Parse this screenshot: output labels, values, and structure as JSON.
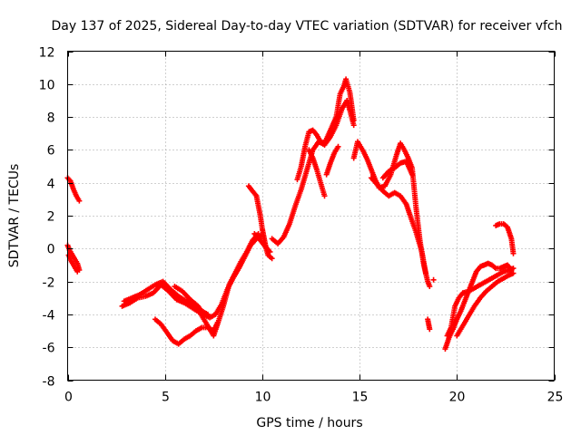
{
  "chart_data": {
    "type": "scatter",
    "title": "Day 137 of 2025, Sidereal Day-to-day VTEC variation (SDTVAR) for receiver vfch",
    "xlabel": "GPS time / hours",
    "ylabel": "SDTVAR / TECUs",
    "xlim": [
      0,
      25
    ],
    "ylim": [
      -8,
      12
    ],
    "xticks": [
      0,
      5,
      10,
      15,
      20,
      25
    ],
    "yticks": [
      -8,
      -6,
      -4,
      -2,
      0,
      2,
      4,
      6,
      8,
      10,
      12
    ],
    "grid": true,
    "marker": "+",
    "color": "#ff0000",
    "series": [
      {
        "name": "seg-a",
        "points": [
          [
            0.0,
            4.3
          ],
          [
            0.15,
            4.1
          ],
          [
            0.3,
            3.6
          ],
          [
            0.45,
            3.2
          ],
          [
            0.6,
            2.9
          ]
        ]
      },
      {
        "name": "seg-b",
        "points": [
          [
            0.0,
            0.2
          ],
          [
            0.1,
            -0.1
          ],
          [
            0.2,
            -0.3
          ],
          [
            0.35,
            -0.6
          ],
          [
            0.5,
            -0.9
          ],
          [
            0.6,
            -1.3
          ]
        ]
      },
      {
        "name": "seg-c",
        "points": [
          [
            0.05,
            -0.4
          ],
          [
            0.2,
            -0.8
          ],
          [
            0.35,
            -1.1
          ],
          [
            0.5,
            -1.4
          ]
        ]
      },
      {
        "name": "seg-d",
        "points": [
          [
            2.8,
            -3.5
          ],
          [
            3.2,
            -3.3
          ],
          [
            3.6,
            -3.0
          ],
          [
            4.0,
            -2.9
          ],
          [
            4.4,
            -2.7
          ],
          [
            4.8,
            -2.2
          ],
          [
            5.2,
            -2.6
          ],
          [
            5.6,
            -3.1
          ],
          [
            6.0,
            -3.3
          ],
          [
            6.4,
            -3.6
          ],
          [
            6.8,
            -3.9
          ],
          [
            7.2,
            -4.7
          ],
          [
            7.5,
            -5.3
          ],
          [
            7.7,
            -4.6
          ],
          [
            8.0,
            -3.5
          ],
          [
            8.3,
            -2.2
          ],
          [
            8.6,
            -1.5
          ],
          [
            8.9,
            -0.8
          ],
          [
            9.2,
            -0.2
          ],
          [
            9.5,
            0.5
          ],
          [
            9.8,
            0.9
          ]
        ]
      },
      {
        "name": "seg-e",
        "points": [
          [
            2.9,
            -3.2
          ],
          [
            3.3,
            -3.0
          ],
          [
            3.7,
            -2.8
          ],
          [
            4.1,
            -2.5
          ],
          [
            4.5,
            -2.2
          ],
          [
            4.9,
            -2.0
          ],
          [
            5.3,
            -2.5
          ],
          [
            5.7,
            -2.9
          ],
          [
            6.1,
            -3.2
          ],
          [
            6.5,
            -3.5
          ],
          [
            6.9,
            -3.8
          ],
          [
            7.2,
            -4.0
          ]
        ]
      },
      {
        "name": "seg-f",
        "points": [
          [
            4.5,
            -4.3
          ],
          [
            4.8,
            -4.6
          ],
          [
            5.1,
            -5.1
          ],
          [
            5.4,
            -5.6
          ],
          [
            5.7,
            -5.8
          ],
          [
            6.0,
            -5.5
          ],
          [
            6.3,
            -5.3
          ],
          [
            6.6,
            -5.0
          ],
          [
            6.9,
            -4.8
          ],
          [
            7.2,
            -4.8
          ],
          [
            7.5,
            -5.0
          ],
          [
            7.7,
            -4.5
          ]
        ]
      },
      {
        "name": "seg-g",
        "points": [
          [
            5.5,
            -2.3
          ],
          [
            5.9,
            -2.6
          ],
          [
            6.3,
            -3.1
          ],
          [
            6.7,
            -3.5
          ],
          [
            7.0,
            -4.0
          ],
          [
            7.3,
            -4.2
          ],
          [
            7.6,
            -4.0
          ],
          [
            7.9,
            -3.4
          ],
          [
            8.2,
            -2.5
          ],
          [
            8.5,
            -1.8
          ],
          [
            8.8,
            -1.2
          ],
          [
            9.1,
            -0.5
          ],
          [
            9.4,
            0.2
          ],
          [
            9.7,
            0.6
          ],
          [
            10.0,
            0.8
          ]
        ]
      },
      {
        "name": "seg-h",
        "points": [
          [
            9.3,
            3.8
          ],
          [
            9.5,
            3.5
          ],
          [
            9.7,
            3.2
          ],
          [
            9.9,
            2.0
          ],
          [
            10.0,
            1.2
          ],
          [
            10.1,
            0.6
          ],
          [
            10.2,
            0.0
          ],
          [
            10.3,
            -0.4
          ],
          [
            10.5,
            -0.6
          ]
        ]
      },
      {
        "name": "seg-i",
        "points": [
          [
            9.6,
            0.9
          ],
          [
            9.9,
            0.5
          ],
          [
            10.1,
            0.2
          ],
          [
            10.4,
            -0.2
          ]
        ]
      },
      {
        "name": "seg-j",
        "points": [
          [
            10.5,
            0.6
          ],
          [
            10.8,
            0.3
          ],
          [
            11.1,
            0.7
          ],
          [
            11.4,
            1.5
          ],
          [
            11.7,
            2.6
          ],
          [
            12.0,
            3.6
          ],
          [
            12.3,
            4.8
          ],
          [
            12.6,
            6.0
          ],
          [
            12.9,
            6.5
          ],
          [
            13.2,
            6.3
          ],
          [
            13.5,
            6.8
          ],
          [
            13.8,
            7.5
          ],
          [
            14.1,
            8.5
          ],
          [
            14.35,
            9.0
          ],
          [
            14.5,
            8.4
          ],
          [
            14.7,
            7.5
          ]
        ]
      },
      {
        "name": "seg-k",
        "points": [
          [
            11.8,
            4.2
          ],
          [
            12.0,
            5.0
          ],
          [
            12.2,
            6.2
          ],
          [
            12.4,
            7.1
          ],
          [
            12.6,
            7.2
          ],
          [
            12.8,
            6.9
          ],
          [
            13.0,
            6.5
          ],
          [
            13.2,
            6.4
          ],
          [
            13.5,
            7.2
          ],
          [
            13.8,
            8.0
          ],
          [
            14.0,
            9.4
          ],
          [
            14.2,
            9.9
          ],
          [
            14.3,
            10.3
          ],
          [
            14.5,
            9.5
          ],
          [
            14.7,
            7.8
          ]
        ]
      },
      {
        "name": "seg-l",
        "points": [
          [
            12.4,
            6.0
          ],
          [
            12.6,
            5.5
          ],
          [
            12.8,
            4.8
          ],
          [
            13.0,
            4.0
          ],
          [
            13.2,
            3.2
          ]
        ]
      },
      {
        "name": "seg-m",
        "points": [
          [
            13.3,
            4.5
          ],
          [
            13.5,
            5.2
          ],
          [
            13.7,
            5.8
          ],
          [
            13.9,
            6.2
          ]
        ]
      },
      {
        "name": "seg-n",
        "points": [
          [
            14.7,
            5.5
          ],
          [
            14.9,
            6.5
          ],
          [
            15.0,
            6.3
          ],
          [
            15.2,
            5.9
          ],
          [
            15.4,
            5.4
          ],
          [
            15.6,
            4.8
          ],
          [
            15.8,
            4.2
          ],
          [
            16.0,
            3.7
          ],
          [
            16.3,
            3.8
          ],
          [
            16.6,
            4.5
          ],
          [
            16.9,
            5.7
          ],
          [
            17.1,
            6.4
          ],
          [
            17.3,
            6.0
          ],
          [
            17.5,
            5.5
          ],
          [
            17.7,
            4.9
          ],
          [
            17.9,
            2.5
          ],
          [
            18.1,
            0.5
          ],
          [
            18.3,
            -1.0
          ],
          [
            18.5,
            -2.0
          ],
          [
            18.6,
            -2.3
          ]
        ]
      },
      {
        "name": "seg-o",
        "points": [
          [
            15.6,
            4.3
          ],
          [
            15.9,
            3.9
          ],
          [
            16.2,
            3.5
          ],
          [
            16.5,
            3.2
          ],
          [
            16.8,
            3.4
          ],
          [
            17.1,
            3.2
          ],
          [
            17.4,
            2.7
          ],
          [
            17.6,
            2.0
          ],
          [
            17.9,
            1.0
          ],
          [
            18.2,
            -0.2
          ],
          [
            18.4,
            -1.5
          ]
        ]
      },
      {
        "name": "seg-p",
        "points": [
          [
            16.2,
            4.3
          ],
          [
            16.5,
            4.7
          ],
          [
            16.8,
            4.9
          ],
          [
            17.1,
            5.2
          ],
          [
            17.4,
            5.3
          ],
          [
            17.7,
            4.5
          ]
        ]
      },
      {
        "name": "seg-q",
        "points": [
          [
            18.8,
            -1.9
          ]
        ]
      },
      {
        "name": "seg-r",
        "points": [
          [
            18.5,
            -4.3
          ],
          [
            18.6,
            -4.9
          ]
        ]
      },
      {
        "name": "seg-s",
        "points": [
          [
            19.4,
            -6.1
          ],
          [
            19.6,
            -5.4
          ],
          [
            19.8,
            -4.9
          ],
          [
            20.0,
            -4.3
          ],
          [
            20.2,
            -3.8
          ],
          [
            20.4,
            -3.2
          ],
          [
            20.6,
            -2.6
          ],
          [
            20.8,
            -2.0
          ],
          [
            21.0,
            -1.4
          ],
          [
            21.2,
            -1.1
          ],
          [
            21.4,
            -1.0
          ],
          [
            21.6,
            -0.9
          ],
          [
            21.8,
            -1.0
          ],
          [
            22.0,
            -1.2
          ],
          [
            22.2,
            -1.2
          ],
          [
            22.4,
            -1.1
          ],
          [
            22.6,
            -1.0
          ],
          [
            22.8,
            -1.3
          ]
        ]
      },
      {
        "name": "seg-t",
        "points": [
          [
            19.5,
            -5.3
          ],
          [
            19.7,
            -4.8
          ],
          [
            19.9,
            -3.5
          ],
          [
            20.1,
            -3.0
          ],
          [
            20.3,
            -2.7
          ],
          [
            20.6,
            -2.6
          ],
          [
            20.9,
            -2.4
          ],
          [
            21.2,
            -2.2
          ],
          [
            21.5,
            -2.0
          ],
          [
            21.8,
            -1.8
          ],
          [
            22.1,
            -1.6
          ],
          [
            22.4,
            -1.4
          ],
          [
            22.7,
            -1.3
          ],
          [
            22.9,
            -1.2
          ]
        ]
      },
      {
        "name": "seg-u",
        "points": [
          [
            20.0,
            -5.3
          ],
          [
            20.3,
            -4.7
          ],
          [
            20.6,
            -4.1
          ],
          [
            20.9,
            -3.5
          ],
          [
            21.2,
            -3.0
          ],
          [
            21.5,
            -2.6
          ],
          [
            21.8,
            -2.3
          ],
          [
            22.1,
            -2.0
          ],
          [
            22.4,
            -1.8
          ],
          [
            22.7,
            -1.6
          ],
          [
            22.9,
            -1.5
          ]
        ]
      },
      {
        "name": "seg-v",
        "points": [
          [
            22.0,
            1.4
          ],
          [
            22.2,
            1.5
          ],
          [
            22.4,
            1.5
          ],
          [
            22.6,
            1.3
          ],
          [
            22.8,
            0.6
          ],
          [
            22.9,
            -0.3
          ]
        ]
      }
    ]
  }
}
